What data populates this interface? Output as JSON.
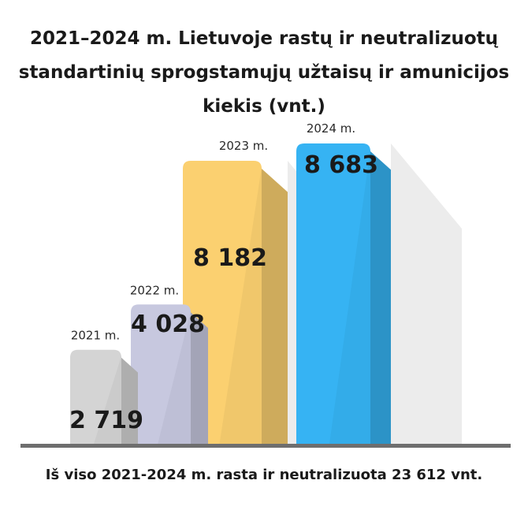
{
  "title_lines": [
    "2021–2024 m. Lietuvoje rastų ir neutralizuotų",
    "standartinių sprogstamųjų užtaisų ir amunicijos",
    "kiekis (vnt.)"
  ],
  "footer": "Iš viso 2021-2024 m. rasta ir neutralizuota 23 612 vnt.",
  "colors": {
    "bar_2021": "#d4d4d4",
    "bar_2022": "#c7c8df",
    "bar_2023": "#fbd070",
    "bar_2024": "#36b3f3",
    "baseline": "#6e6e6e"
  },
  "chart_data": {
    "type": "bar",
    "title": "2021–2024 m. Lietuvoje rastų ir neutralizuotų standartinių sprogstamųjų užtaisų ir amunicijos kiekis (vnt.)",
    "categories": [
      "2021 m.",
      "2022 m.",
      "2023 m.",
      "2024 m."
    ],
    "values": [
      2719,
      4028,
      8182,
      8683
    ],
    "value_labels": [
      "2 719",
      "4 028",
      "8 182",
      "8 683"
    ],
    "ylim": [
      0,
      9000
    ],
    "grid": false,
    "legend": "none"
  }
}
